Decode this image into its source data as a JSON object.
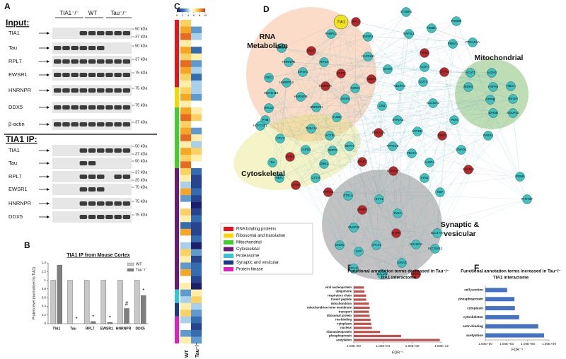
{
  "panel_labels": [
    "A",
    "B",
    "C",
    "D",
    "E",
    "F"
  ],
  "blot": {
    "lanes": [
      "TIA1⁻/⁻",
      "WT",
      "Tau⁻/⁻"
    ],
    "sections": [
      {
        "title": "Input:",
        "rows": [
          {
            "label": "TIA1",
            "markers": [
              "50 kDa",
              "37 kDa"
            ]
          },
          {
            "label": "Tau",
            "markers": [
              "50 kDa"
            ]
          },
          {
            "label": "RPL7",
            "markers": [
              "37 kDa"
            ]
          },
          {
            "label": "EWSR1",
            "markers": [
              "75 kDa"
            ]
          },
          {
            "label": "HNRNPR",
            "markers": [
              "75 kDa"
            ]
          },
          {
            "label": "DDX5",
            "markers": [
              "75 kDa"
            ]
          },
          {
            "label": "β-actin",
            "markers": [
              "37 kDa"
            ]
          }
        ]
      },
      {
        "title": "TIA1 IP:",
        "rows": [
          {
            "label": "TIA1",
            "markers": [
              "50 kDa",
              "37 kDa"
            ]
          },
          {
            "label": "Tau",
            "markers": [
              "50 kDa"
            ]
          },
          {
            "label": "RPL7",
            "markers": [
              "37 kDa",
              "25 kDa"
            ]
          },
          {
            "label": "EWSR1",
            "markers": [
              "75 kDa"
            ]
          },
          {
            "label": "HNRNPR",
            "markers": [
              "75 kDa"
            ]
          },
          {
            "label": "DDX5",
            "markers": [
              "75 kDa"
            ]
          }
        ]
      }
    ]
  },
  "chart_data": [
    {
      "type": "bar",
      "title": "TIA1 IP from Mouse Cortex",
      "y_label": "Protein level (normalized to TIA1)",
      "categories": [
        "TIA1",
        "Tau",
        "RPL7",
        "EWSR1",
        "HNRNPR",
        "DDX5"
      ],
      "series": [
        {
          "name": "WT",
          "color": "#c8c8c8",
          "values": [
            1,
            1,
            1,
            1,
            1,
            1
          ]
        },
        {
          "name": "Tau⁻/⁻",
          "color": "#7f7f7f",
          "values": [
            1.35,
            0,
            0.05,
            0.03,
            0.35,
            0.65
          ]
        }
      ],
      "annotations": [
        null,
        "*",
        "*",
        "*",
        "#",
        "*"
      ],
      "ylim": [
        0,
        1.4
      ],
      "yticks": [
        0,
        0.2,
        0.4,
        0.6,
        0.8,
        1,
        1.2,
        1.4
      ],
      "legend": "upper right"
    },
    {
      "type": "heatmap",
      "columns": [
        "WT",
        "Tau⁻/⁻"
      ],
      "zlim": [
        0,
        10
      ],
      "zticks": [
        0,
        2,
        4,
        6,
        8,
        10
      ],
      "groups": [
        {
          "name": "RNA binding proteins",
          "color": "#e8141b",
          "values": [
            [
              7,
              5
            ],
            [
              8,
              3
            ],
            [
              9,
              4
            ],
            [
              6,
              5
            ],
            [
              8,
              2
            ],
            [
              7,
              6
            ],
            [
              9,
              3
            ],
            [
              8,
              4
            ],
            [
              7,
              2
            ],
            [
              6,
              4
            ]
          ]
        },
        {
          "name": "Ribosomal and translation",
          "color": "#f5d800",
          "values": [
            [
              7,
              4
            ],
            [
              8,
              3
            ],
            [
              6,
              5
            ]
          ]
        },
        {
          "name": "Mitochondrial",
          "color": "#3fd12a",
          "values": [
            [
              8,
              6
            ],
            [
              9,
              7
            ],
            [
              7,
              5
            ],
            [
              8,
              3
            ],
            [
              9,
              6
            ],
            [
              6,
              4
            ],
            [
              8,
              7
            ],
            [
              7,
              6
            ],
            [
              9,
              5
            ]
          ]
        },
        {
          "name": "Cytoskeletal",
          "color": "#6a1a7a",
          "values": [
            [
              7,
              2
            ],
            [
              6,
              1
            ],
            [
              4,
              1
            ],
            [
              8,
              2
            ],
            [
              3,
              1
            ],
            [
              5,
              0
            ],
            [
              7,
              1
            ],
            [
              6,
              2
            ],
            [
              2,
              1
            ],
            [
              8,
              1
            ],
            [
              5,
              2
            ],
            [
              4,
              0
            ],
            [
              7,
              3
            ],
            [
              6,
              1
            ],
            [
              3,
              2
            ],
            [
              8,
              2
            ],
            [
              5,
              1
            ],
            [
              6,
              0
            ]
          ]
        },
        {
          "name": "Proteasome",
          "color": "#30c8d8",
          "values": [
            [
              3,
              6
            ],
            [
              4,
              7
            ]
          ]
        },
        {
          "name": "Synaptic and vesicular",
          "color": "#1f3a8a",
          "values": [
            [
              6,
              4
            ],
            [
              7,
              3
            ]
          ]
        },
        {
          "name": "Protein kinase",
          "color": "#e020c0",
          "values": [
            [
              4,
              2
            ],
            [
              5,
              1
            ],
            [
              3,
              2
            ],
            [
              6,
              3
            ]
          ]
        }
      ]
    },
    {
      "type": "hbar",
      "title": [
        "Functional annotation terms decreased in Tau⁻/⁻",
        "TIA1 interactome"
      ],
      "x_label": "FDR⁻¹",
      "categories": [
        "viral nucleoprotein",
        "ubiquinone",
        "respiratory chain",
        "transit peptide",
        "mitochondrion",
        "mitochondrion inner membrane",
        "transport",
        "ribosomal protein",
        "rna-binding",
        "cytoplasm",
        "nucleus",
        "ribonucleoprotein",
        "phosphoprotein",
        "acetylation"
      ],
      "values": [
        25,
        30,
        50,
        50,
        120,
        150,
        120,
        150,
        200,
        250,
        300,
        4000,
        3000000,
        600000000000
      ],
      "color": "#c0504d",
      "xscale": "log",
      "xlim": [
        1,
        1000000000000
      ],
      "xticks": [
        {
          "value": 1,
          "label": "1.00E+00"
        },
        {
          "value": 10000,
          "label": "1.00E+04"
        },
        {
          "value": 100000000,
          "label": "1.00E+08"
        },
        {
          "value": 1000000000000,
          "label": "1.00E+12"
        }
      ]
    },
    {
      "type": "hbar",
      "title": [
        "Functional annotation terms increased in Tau⁻/⁻",
        "TIA1 interactome"
      ],
      "x_label": "FDR⁻¹",
      "categories": [
        "cell junction",
        "phosphoprotein",
        "cytoplasm",
        "cytoskeleton",
        "actin-binding",
        "acetylation"
      ],
      "values": [
        1200,
        13000,
        15000,
        60000,
        30000000,
        200000000
      ],
      "color": "#4472c4",
      "xscale": "log",
      "xlim": [
        1,
        1000000000
      ],
      "xticks": [
        {
          "value": 1,
          "label": "1.00E+00"
        },
        {
          "value": 1000,
          "label": "1.00E+03"
        },
        {
          "value": 1000000,
          "label": "1.00E+06"
        },
        {
          "value": 1000000000,
          "label": "1.00E+09"
        }
      ]
    }
  ],
  "network": {
    "clusters": [
      {
        "label": [
          "RNA",
          "Metabolism"
        ],
        "color": "rgba(244,164,110,0.38)"
      },
      {
        "label": [
          "Mitochondrial"
        ],
        "color": "rgba(110,180,90,0.45)"
      },
      {
        "label": [
          "Cytoskeletal"
        ],
        "color": "rgba(230,225,110,0.38)"
      },
      {
        "label": [
          "Synaptic &",
          "vesicular"
        ],
        "color": "rgba(110,110,110,0.42)"
      }
    ],
    "nodes": [
      {
        "label": "TIA1",
        "color": "#f2e21d"
      },
      {
        "label": "RPL7",
        "color": "#b8282a"
      },
      {
        "label": "PABPC1",
        "color": "#3fc1c0"
      },
      {
        "label": "EWSR1",
        "color": "#3fc1c0"
      },
      {
        "label": "SNRPB",
        "color": "#3fc1c0"
      },
      {
        "label": "SRSF7",
        "color": "#b8282a"
      },
      {
        "label": "CAPRIN1",
        "color": "#3fc1c0"
      },
      {
        "label": "HNRNPR",
        "color": "#3fc1c0"
      },
      {
        "label": "RPS3",
        "color": "#3fc1c0"
      },
      {
        "label": "EIF4A1",
        "color": "#3fc1c0"
      },
      {
        "label": "SFPQ",
        "color": "#b8282a"
      },
      {
        "label": "G3BP1",
        "color": "#b8282a"
      },
      {
        "label": "YBX1",
        "color": "#3fc1c0"
      },
      {
        "label": "HNRNPL2",
        "color": "#3fc1c0"
      },
      {
        "label": "HNRNPK",
        "color": "#b8282a"
      },
      {
        "label": "NONO",
        "color": "#3fc1c0"
      },
      {
        "label": "HIST1H4B",
        "color": "#3fc1c0"
      },
      {
        "label": "HNRNPM",
        "color": "#3fc1c0"
      },
      {
        "label": "DDX5",
        "color": "#3fc1c0"
      },
      {
        "label": "HNRNPU",
        "color": "#3fc1c0"
      },
      {
        "label": "RPL10",
        "color": "#3fc1c0"
      },
      {
        "label": "PHB",
        "color": "#3fc1c0"
      },
      {
        "label": "STXBP1",
        "color": "#3fc1c0"
      },
      {
        "label": "PSMD1",
        "color": "#3fc1c0"
      },
      {
        "label": "PSMD6",
        "color": "#3fc1c0"
      },
      {
        "label": "NAP1L1",
        "color": "#3fc1c0"
      },
      {
        "label": "PSMA1",
        "color": "#3fc1c0"
      },
      {
        "label": "PRKAR1A",
        "color": "#3fc1c0"
      },
      {
        "label": "TRIM2",
        "color": "#b8282a"
      },
      {
        "label": "ACOT7",
        "color": "#3fc1c0"
      },
      {
        "label": "DHX9",
        "color": "#3fc1c0"
      },
      {
        "label": "GAP43",
        "color": "#b8282a"
      },
      {
        "label": "GOT1",
        "color": "#3fc1c0"
      },
      {
        "label": "NDUFA4",
        "color": "#3fc1c0"
      },
      {
        "label": "ACAT1",
        "color": "#3fc1c0"
      },
      {
        "label": "ALDH2",
        "color": "#3fc1c0"
      },
      {
        "label": "MDH1",
        "color": "#3fc1c0"
      },
      {
        "label": "HSPA9",
        "color": "#3fc1c0"
      },
      {
        "label": "HBA1",
        "color": "#3fc1c0"
      },
      {
        "label": "ATP5B",
        "color": "#3fc1c0"
      },
      {
        "label": "IDH3A",
        "color": "#3fc1c0"
      },
      {
        "label": "IDH3B",
        "color": "#3fc1c0"
      },
      {
        "label": "NDUFS2",
        "color": "#3fc1c0"
      },
      {
        "label": "HCFC1R1",
        "color": "#3fc1c0"
      },
      {
        "label": "CFL1",
        "color": "#3fc1c0"
      },
      {
        "label": "TUBA1A",
        "color": "#3fc1c0"
      },
      {
        "label": "TUBB",
        "color": "#3fc1c0"
      },
      {
        "label": "ACTB",
        "color": "#3fc1c0"
      },
      {
        "label": "SEPT7",
        "color": "#3fc1c0"
      },
      {
        "label": "SEPT5",
        "color": "#3fc1c0"
      },
      {
        "label": "CAPZB",
        "color": "#3fc1c0"
      },
      {
        "label": "PFN1",
        "color": "#b8282a"
      },
      {
        "label": "INA",
        "color": "#3fc1c0"
      },
      {
        "label": "DBN1",
        "color": "#3fc1c0"
      },
      {
        "label": "MAP2",
        "color": "#b8282a"
      },
      {
        "label": "NEFL",
        "color": "#3fc1c0"
      },
      {
        "label": "ACTN4",
        "color": "#b8282a"
      },
      {
        "label": "CTTN",
        "color": "#3fc1c0"
      },
      {
        "label": "CKB",
        "color": "#3fc1c0"
      },
      {
        "label": "SLC12A2",
        "color": "#3fc1c0"
      },
      {
        "label": "PKM",
        "color": "#3fc1c0"
      },
      {
        "label": "ATP1A3",
        "color": "#3fc1c0"
      },
      {
        "label": "PRKACA",
        "color": "#b8282a"
      },
      {
        "label": "ATP1B1",
        "color": "#3fc1c0"
      },
      {
        "label": "ENO2",
        "color": "#b8282a"
      },
      {
        "label": "RAB3A",
        "color": "#3fc1c0"
      },
      {
        "label": "PPP1CB",
        "color": "#3fc1c0"
      },
      {
        "label": "GNAO1",
        "color": "#3fc1c0"
      },
      {
        "label": "VDAC1",
        "color": "#3fc1c0"
      },
      {
        "label": "ALDOA",
        "color": "#3fc1c0"
      },
      {
        "label": "CAMK2A",
        "color": "#b8282a"
      },
      {
        "label": "SNAP25",
        "color": "#b8282a"
      },
      {
        "label": "PDHB",
        "color": "#3fc1c0"
      },
      {
        "label": "SYN1",
        "color": "#3fc1c0"
      },
      {
        "label": "PPFIA3",
        "color": "#b8282a"
      },
      {
        "label": "NSF",
        "color": "#3fc1c0"
      },
      {
        "label": "STX1A",
        "color": "#3fc1c0"
      },
      {
        "label": "SYT1",
        "color": "#3fc1c0"
      },
      {
        "label": "PHYHIP",
        "color": "#3fc1c0"
      },
      {
        "label": "VAMP2",
        "color": "#b8282a"
      },
      {
        "label": "SV2A",
        "color": "#3fc1c0"
      },
      {
        "label": "SNAP91",
        "color": "#3fc1c0"
      },
      {
        "label": "NAPB",
        "color": "#b8282a"
      },
      {
        "label": "SLC17A7",
        "color": "#3fc1c0"
      },
      {
        "label": "SLC32A1",
        "color": "#3fc1c0"
      },
      {
        "label": "CPLX1",
        "color": "#3fc1c0"
      },
      {
        "label": "SLC25A12",
        "color": "#3fc1c0"
      },
      {
        "label": "DNM1",
        "color": "#3fc1c0"
      },
      {
        "label": "SYP",
        "color": "#3fc1c0"
      },
      {
        "label": "GRIA2",
        "color": "#3fc1c0"
      },
      {
        "label": "PCLO",
        "color": "#3fc1c0"
      },
      {
        "label": "SLC1A2",
        "color": "#3fc1c0"
      },
      {
        "label": "NRXN1",
        "color": "#b8282a"
      }
    ]
  }
}
